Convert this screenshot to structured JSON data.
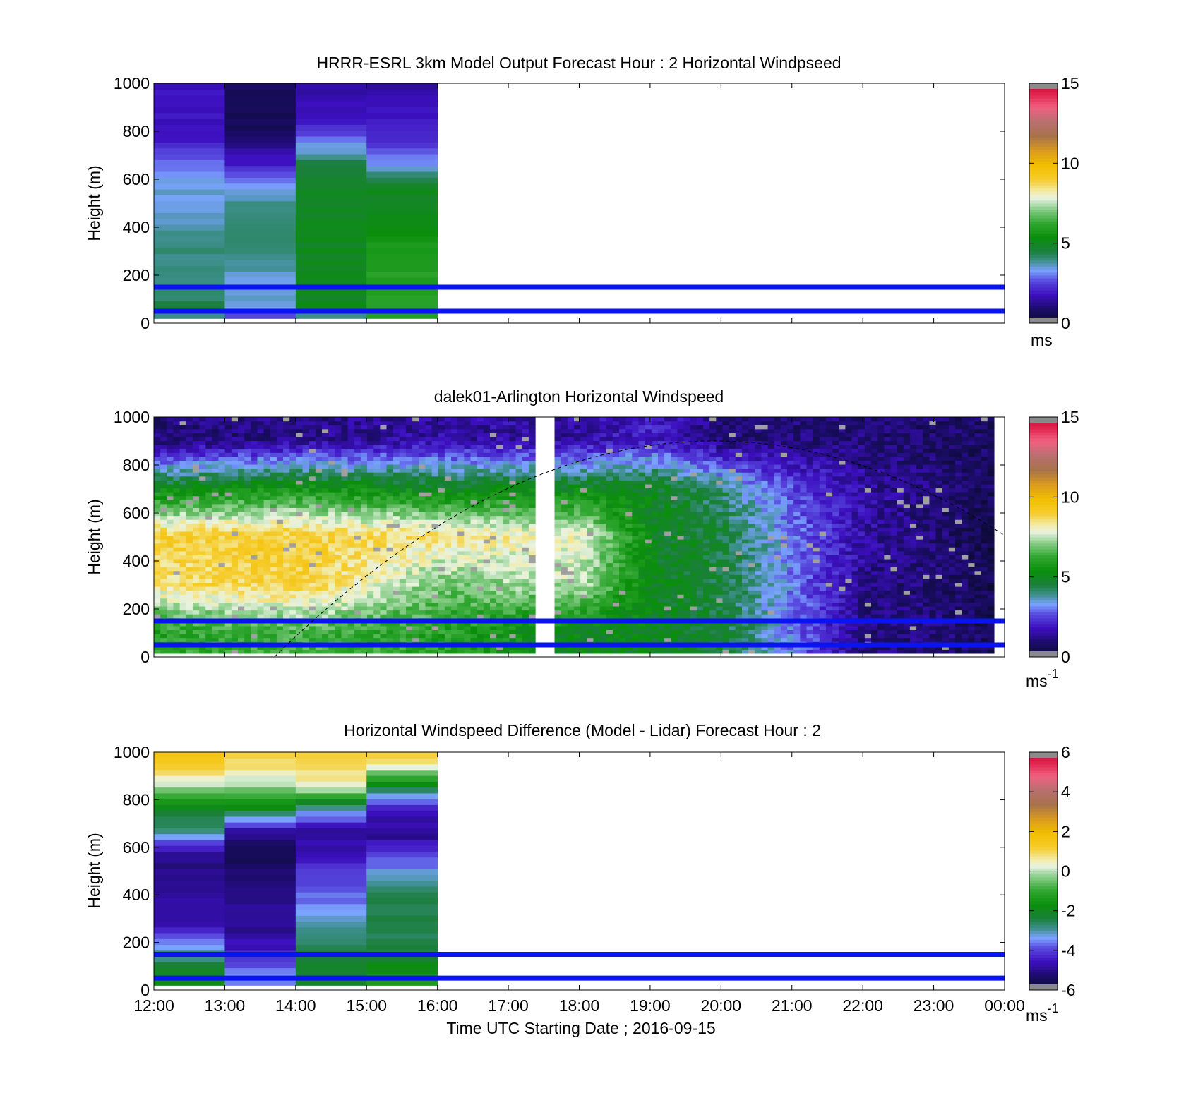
{
  "figure": {
    "xlabel": "Time UTC  Starting Date ; 2016-09-15",
    "time_ticks": [
      "12:00",
      "13:00",
      "14:00",
      "15:00",
      "16:00",
      "17:00",
      "18:00",
      "19:00",
      "20:00",
      "21:00",
      "22:00",
      "23:00",
      "00:00"
    ],
    "height_ticks": [
      "0",
      "200",
      "400",
      "600",
      "800",
      "1000"
    ]
  },
  "chart_data": [
    {
      "type": "heatmap",
      "title": "HRRR-ESRL 3km Model Output   Forecast Hour : 2 Horizontal Windpseed",
      "ylabel": "Height (m)",
      "xlim_hours": [
        12,
        24
      ],
      "ylim": [
        0,
        1000
      ],
      "colorbar": {
        "min": 0,
        "max": 15,
        "ticks": [
          "0",
          "5",
          "10",
          "15"
        ],
        "unit": "ms",
        "unit_sup": ""
      },
      "reference_lines_m": [
        50,
        150
      ],
      "data_extent_hours": [
        12,
        16
      ],
      "sample_columns": [
        {
          "time": "12:00-13:00",
          "profile_ms": [
            [
              0,
              3
            ],
            [
              50,
              5
            ],
            [
              100,
              4
            ],
            [
              175,
              4
            ],
            [
              250,
              4
            ],
            [
              350,
              4
            ],
            [
              450,
              3.5
            ],
            [
              550,
              3.5
            ],
            [
              650,
              3
            ],
            [
              750,
              2
            ],
            [
              850,
              1.8
            ],
            [
              950,
              1.8
            ]
          ]
        },
        {
          "time": "13:00-14:00",
          "profile_ms": [
            [
              0,
              2
            ],
            [
              50,
              3.5
            ],
            [
              100,
              3.5
            ],
            [
              175,
              3.5
            ],
            [
              250,
              4
            ],
            [
              350,
              4
            ],
            [
              450,
              4
            ],
            [
              550,
              3.5
            ],
            [
              650,
              2
            ],
            [
              750,
              1
            ],
            [
              850,
              0.5
            ],
            [
              950,
              0.7
            ]
          ]
        },
        {
          "time": "14:00-15:00",
          "profile_ms": [
            [
              0,
              3
            ],
            [
              50,
              5
            ],
            [
              100,
              5
            ],
            [
              175,
              5
            ],
            [
              250,
              5
            ],
            [
              350,
              5
            ],
            [
              450,
              5
            ],
            [
              550,
              5
            ],
            [
              650,
              4.5
            ],
            [
              750,
              3
            ],
            [
              850,
              1.8
            ],
            [
              950,
              1.5
            ]
          ]
        },
        {
          "time": "15:00-16:00",
          "profile_ms": [
            [
              0,
              6
            ],
            [
              50,
              6
            ],
            [
              100,
              6
            ],
            [
              175,
              6
            ],
            [
              250,
              6
            ],
            [
              350,
              5.5
            ],
            [
              450,
              5
            ],
            [
              550,
              5
            ],
            [
              650,
              3.2
            ],
            [
              750,
              2.2
            ],
            [
              850,
              1.8
            ],
            [
              950,
              1.6
            ]
          ]
        }
      ]
    },
    {
      "type": "heatmap",
      "title": "dalek01-Arlington  Horizontal Windspeed",
      "ylabel": "Height (m)",
      "xlim_hours": [
        12,
        24
      ],
      "ylim": [
        0,
        1000
      ],
      "colorbar": {
        "min": 0,
        "max": 15,
        "ticks": [
          "0",
          "5",
          "10",
          "15"
        ],
        "unit": "ms",
        "unit_sup": "-1"
      },
      "reference_lines_m": [
        50,
        150
      ],
      "data_gap_hours": [
        17.3,
        17.6
      ],
      "overlay": "dashed boundary-layer height curve",
      "sample_columns": [
        {
          "time": "12:00",
          "profile_ms": [
            [
              100,
              6
            ],
            [
              300,
              8.5
            ],
            [
              500,
              9
            ],
            [
              700,
              5
            ],
            [
              900,
              1
            ]
          ]
        },
        {
          "time": "14:00",
          "profile_ms": [
            [
              100,
              6.5
            ],
            [
              300,
              9
            ],
            [
              500,
              9
            ],
            [
              700,
              5.5
            ],
            [
              900,
              1.2
            ]
          ]
        },
        {
          "time": "16:00",
          "profile_ms": [
            [
              100,
              6
            ],
            [
              300,
              7
            ],
            [
              500,
              8.5
            ],
            [
              700,
              5
            ],
            [
              900,
              1.5
            ]
          ]
        },
        {
          "time": "18:00",
          "profile_ms": [
            [
              100,
              5
            ],
            [
              300,
              7.5
            ],
            [
              500,
              8
            ],
            [
              700,
              5
            ],
            [
              900,
              1.5
            ]
          ]
        },
        {
          "time": "19:00",
          "profile_ms": [
            [
              100,
              5
            ],
            [
              300,
              5
            ],
            [
              500,
              5
            ],
            [
              700,
              5
            ],
            [
              900,
              2
            ]
          ]
        },
        {
          "time": "20:00",
          "profile_ms": [
            [
              100,
              4.5
            ],
            [
              300,
              4.5
            ],
            [
              500,
              4.5
            ],
            [
              700,
              4
            ],
            [
              900,
              1
            ]
          ]
        },
        {
          "time": "21:00",
          "profile_ms": [
            [
              100,
              3
            ],
            [
              300,
              3
            ],
            [
              500,
              3
            ],
            [
              700,
              2.5
            ],
            [
              900,
              1
            ]
          ]
        },
        {
          "time": "22:00",
          "profile_ms": [
            [
              100,
              1
            ],
            [
              300,
              1.2
            ],
            [
              500,
              1.5
            ],
            [
              700,
              1.5
            ],
            [
              900,
              1
            ]
          ]
        },
        {
          "time": "23:00",
          "profile_ms": [
            [
              100,
              1
            ],
            [
              300,
              1
            ],
            [
              500,
              1
            ],
            [
              700,
              1
            ],
            [
              900,
              0.8
            ]
          ]
        }
      ]
    },
    {
      "type": "heatmap",
      "title": "Horizontal Windspeed Difference (Model - Lidar) Forecast Hour : 2",
      "ylabel": "Height (m)",
      "xlim_hours": [
        12,
        24
      ],
      "ylim": [
        0,
        1000
      ],
      "colorbar": {
        "min": -6,
        "max": 6,
        "ticks": [
          "-6",
          "-4",
          "-2",
          "0",
          "2",
          "4",
          "6"
        ],
        "unit": "ms",
        "unit_sup": "-1"
      },
      "reference_lines_m": [
        50,
        150
      ],
      "data_extent_hours": [
        12,
        16
      ],
      "sample_columns": [
        {
          "time": "12:00-13:00",
          "profile_ms": [
            [
              50,
              -2
            ],
            [
              150,
              -3
            ],
            [
              250,
              -4.5
            ],
            [
              400,
              -5
            ],
            [
              550,
              -5
            ],
            [
              650,
              -3
            ],
            [
              750,
              -2
            ],
            [
              850,
              0
            ],
            [
              950,
              1.5
            ]
          ]
        },
        {
          "time": "13:00-14:00",
          "profile_ms": [
            [
              50,
              -3.5
            ],
            [
              150,
              -4.5
            ],
            [
              250,
              -5
            ],
            [
              400,
              -5
            ],
            [
              550,
              -5.5
            ],
            [
              650,
              -5
            ],
            [
              750,
              -2
            ],
            [
              850,
              0
            ],
            [
              950,
              1
            ]
          ]
        },
        {
          "time": "14:00-15:00",
          "profile_ms": [
            [
              50,
              -2
            ],
            [
              150,
              -2.5
            ],
            [
              250,
              -3
            ],
            [
              400,
              -3.8
            ],
            [
              550,
              -4.5
            ],
            [
              650,
              -5
            ],
            [
              750,
              -3
            ],
            [
              850,
              0.5
            ],
            [
              950,
              1
            ]
          ]
        },
        {
          "time": "15:00-16:00",
          "profile_ms": [
            [
              50,
              -1.5
            ],
            [
              150,
              -2.5
            ],
            [
              250,
              -2.5
            ],
            [
              400,
              -2.5
            ],
            [
              550,
              -4
            ],
            [
              650,
              -5
            ],
            [
              750,
              -4.5
            ],
            [
              850,
              -2
            ],
            [
              950,
              1
            ]
          ]
        }
      ]
    }
  ]
}
